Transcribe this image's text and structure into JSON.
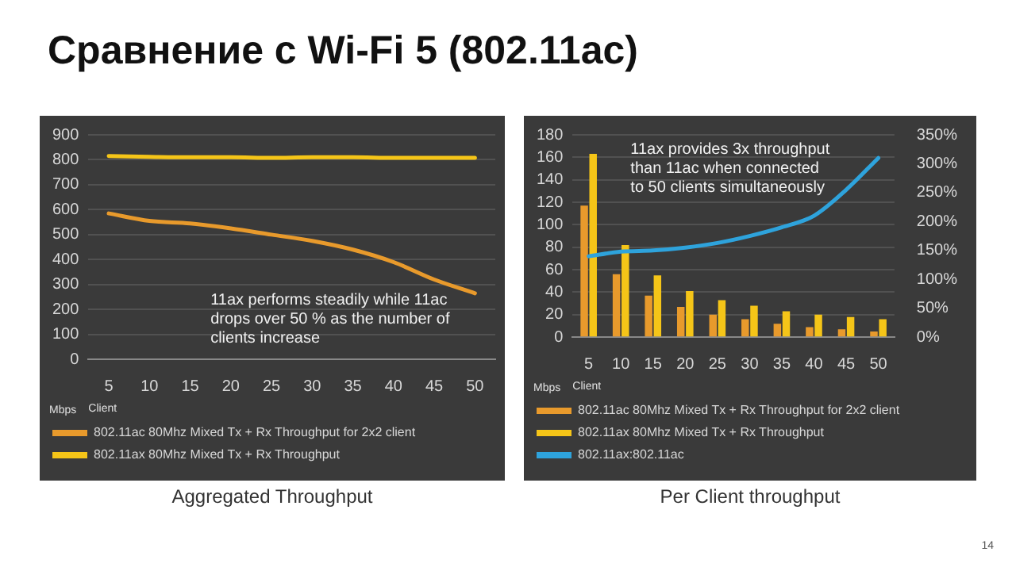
{
  "chart_data": [
    {
      "type": "line",
      "title": "Сравнение с Wi-Fi 5 (802.11ac)",
      "xlabel": "Client",
      "ylabel": "Mbps",
      "categories": [
        "5",
        "10",
        "15",
        "20",
        "25",
        "30",
        "35",
        "40",
        "45",
        "50"
      ],
      "series": [
        {
          "name": "802.11ac 80Mhz Mixed Tx + Rx Throughput for 2x2 client",
          "color": "#e89a2c",
          "values": [
            585,
            555,
            545,
            525,
            500,
            475,
            440,
            390,
            320,
            265
          ]
        },
        {
          "name": "802.11ax 80Mhz Mixed Tx + Rx Throughput",
          "color": "#f5c518",
          "values": [
            815,
            812,
            810,
            810,
            808,
            810,
            810,
            808,
            808,
            808
          ]
        }
      ],
      "ylim": [
        0,
        900
      ],
      "yticks": [
        0,
        100,
        200,
        300,
        400,
        500,
        600,
        700,
        800,
        900
      ],
      "grid": "y",
      "legend": "bottom",
      "marker": "none",
      "line_style": "solid",
      "annotations": [
        "11ax performs steadily while 11ac drops over 50 % as the number of clients increase",
        "Aggregated Throughput"
      ]
    },
    {
      "type": "bar",
      "xlabel": "Client",
      "ylabel": "Mbps",
      "categories": [
        "5",
        "10",
        "15",
        "20",
        "25",
        "30",
        "35",
        "40",
        "45",
        "50"
      ],
      "series": [
        {
          "name": "802.11ac 80Mhz Mixed Tx + Rx Throughput for 2x2 client",
          "color": "#e89a2c",
          "values": [
            117,
            56,
            37,
            27,
            20,
            16,
            12,
            9,
            7,
            5
          ]
        },
        {
          "name": "802.11ax 80Mhz Mixed Tx + Rx Throughput",
          "color": "#f5c518",
          "values": [
            163,
            82,
            55,
            41,
            33,
            28,
            23,
            20,
            18,
            16
          ]
        },
        {
          "name": "802.11ax:802.11ac",
          "type": "line",
          "axis": "y2",
          "color": "#2ea3dc",
          "values": [
            140,
            148,
            150,
            155,
            163,
            175,
            190,
            210,
            255,
            310
          ]
        }
      ],
      "ylim": [
        0,
        180
      ],
      "yticks": [
        0,
        20,
        40,
        60,
        80,
        100,
        120,
        140,
        160,
        180
      ],
      "y2lim": [
        0,
        350
      ],
      "y2ticks": [
        {
          "value": 0,
          "label": "0%"
        },
        {
          "value": 50,
          "label": "50%"
        },
        {
          "value": 100,
          "label": "100%"
        },
        {
          "value": 150,
          "label": "150%"
        },
        {
          "value": 200,
          "label": "200%"
        },
        {
          "value": 250,
          "label": "250%"
        },
        {
          "value": 300,
          "label": "300%"
        },
        {
          "value": 350,
          "label": "350%"
        }
      ],
      "grid": "y",
      "legend": "bottom",
      "marker": "none",
      "annotations": [
        "11ax provides 3x throughput than 11ac when connected to 50 clients simultaneously",
        "Per Client throughput",
        "14"
      ]
    }
  ]
}
